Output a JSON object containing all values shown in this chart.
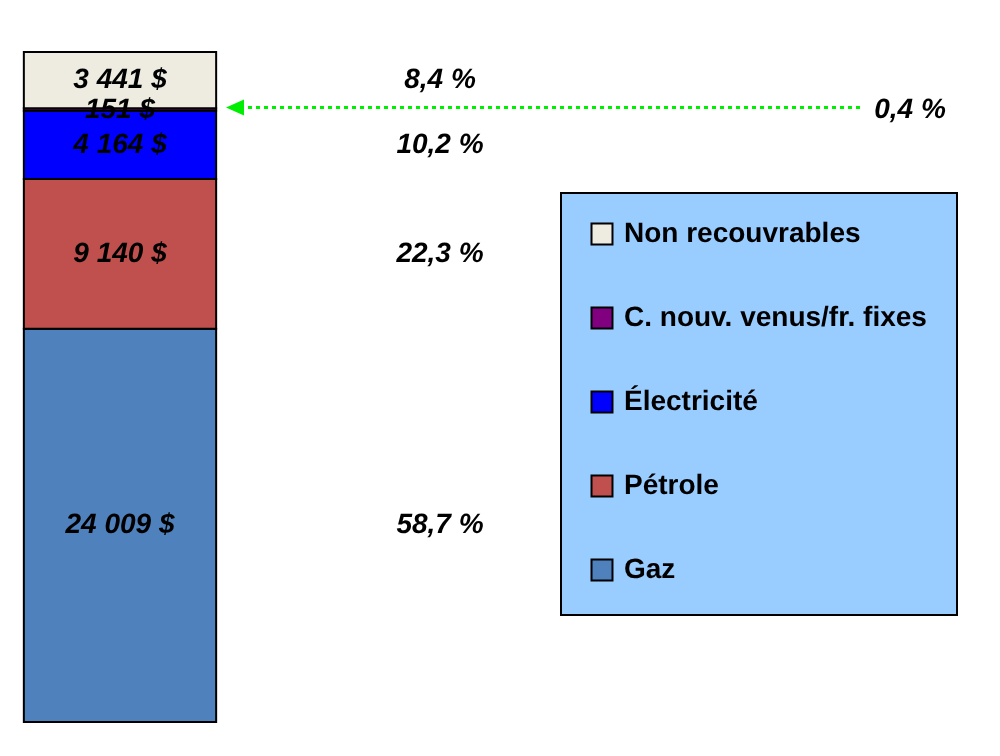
{
  "chart_data": {
    "type": "bar",
    "stacked": true,
    "categories": [
      null
    ],
    "tick_labels": false,
    "legend": "right",
    "series": [
      {
        "name": "Gaz",
        "color": "#4f81bd",
        "values": [
          24009
        ],
        "value_labels": [
          "24 009 $"
        ]
      },
      {
        "name": "Pétrole",
        "color": "#c0504d",
        "values": [
          9140
        ],
        "value_labels": [
          "9 140 $"
        ]
      },
      {
        "name": "Électricité",
        "color": "#0000ff",
        "values": [
          4164
        ],
        "value_labels": [
          "4 164 $"
        ]
      },
      {
        "name": "C. nouv. venus/fr. fixes",
        "color": "#800080",
        "values": [
          151
        ],
        "value_labels": [
          "151 $"
        ]
      },
      {
        "name": "Non recouvrables",
        "color": "#eeece1",
        "values": [
          3441
        ],
        "value_labels": [
          "3 441 $"
        ]
      }
    ],
    "annotations": [
      "58,7 %",
      "22,3 %",
      "10,2 %",
      "0,4 %",
      "8,4 %"
    ]
  }
}
